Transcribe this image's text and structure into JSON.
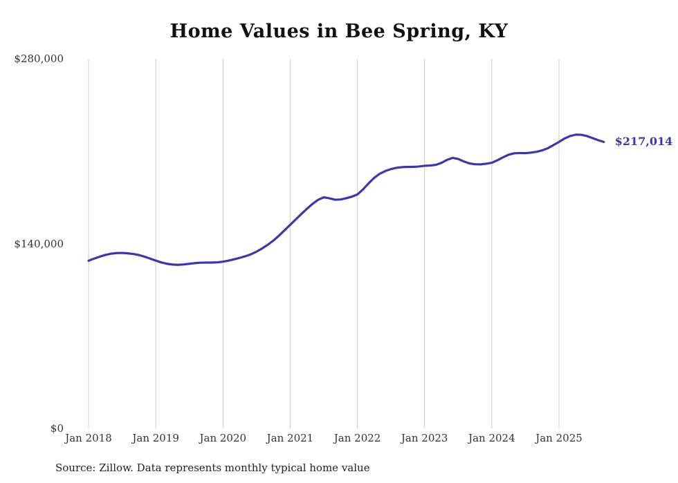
{
  "title": "Home Values in Bee Spring, KY",
  "source_note": "Source: Zillow. Data represents monthly typical home value",
  "end_label": "$217,014",
  "colors": {
    "line": "#3a35b0",
    "grid": "#cccccc",
    "title_text": "#101010",
    "axis_text": "#333333",
    "end_label": "#3a35b0",
    "source_text": "#222222",
    "background": "#ffffff"
  },
  "chart_data": {
    "type": "line",
    "title": "Home Values in Bee Spring, KY",
    "xlabel": "",
    "ylabel": "",
    "ylim": [
      0,
      280000
    ],
    "grid": "vertical-yearly",
    "legend": "none",
    "unit": "USD",
    "start_month": "Jan 2018",
    "end_month": "Sep 2025",
    "x_tick_labels": [
      "Jan 2018",
      "Jan 2019",
      "Jan 2020",
      "Jan 2021",
      "Jan 2022",
      "Jan 2023",
      "Jan 2024",
      "Jan 2025"
    ],
    "y_ticks": [
      {
        "value": 0,
        "label": "$0"
      },
      {
        "value": 140000,
        "label": "$140,000"
      },
      {
        "value": 280000,
        "label": "$280,000"
      }
    ],
    "final_value": 217014,
    "final_value_label": "$217,014",
    "values": [
      127000,
      128600,
      130100,
      131400,
      132300,
      132800,
      132900,
      132600,
      132100,
      131300,
      130100,
      128600,
      127100,
      125700,
      124700,
      124100,
      123900,
      124200,
      124700,
      125200,
      125500,
      125600,
      125600,
      125800,
      126300,
      127100,
      128100,
      129200,
      130400,
      131900,
      133900,
      136300,
      139100,
      142300,
      146000,
      150100,
      154200,
      158300,
      162400,
      166400,
      170100,
      173200,
      175000,
      174300,
      173200,
      173400,
      174300,
      175500,
      177200,
      181000,
      185600,
      189800,
      192900,
      195000,
      196400,
      197400,
      197900,
      198100,
      198100,
      198400,
      198900,
      199100,
      199600,
      201100,
      203400,
      204900,
      204100,
      202200,
      200700,
      200100,
      200000,
      200500,
      201200,
      203100,
      205300,
      207300,
      208400,
      208600,
      208500,
      208900,
      209500,
      210600,
      212200,
      214600,
      217000,
      219600,
      221500,
      222500,
      222400,
      221400,
      219900,
      218300,
      217014
    ]
  },
  "layout_hints": {
    "months_per_tick": 12
  }
}
